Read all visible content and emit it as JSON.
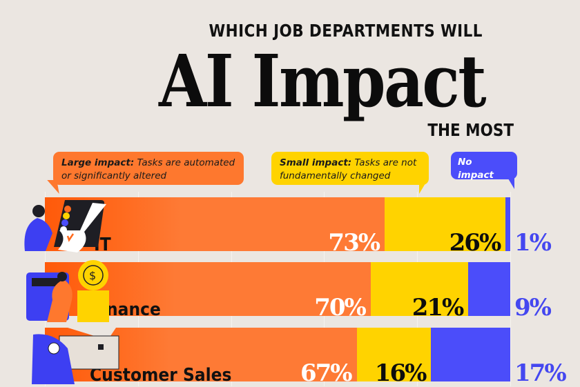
{
  "header": {
    "title_top": "WHICH JOB DEPARTMENTS WILL",
    "title_main": "AI Impact",
    "title_bottom": "THE MOST"
  },
  "legend": [
    {
      "key": "large",
      "label_bold": "Large impact:",
      "label_rest": " Tasks are automated or significantly altered",
      "color": "#fe782e"
    },
    {
      "key": "small",
      "label_bold": "Small impact:",
      "label_rest": " Tasks are not fundamentally changed",
      "color": "#ffd300"
    },
    {
      "key": "none",
      "label_bold": "No impact",
      "label_rest": "",
      "color": "#4b4dfa"
    }
  ],
  "chart_data": {
    "type": "bar",
    "orientation": "horizontal",
    "stacked": true,
    "title": "Which Job Departments Will AI Impact the Most",
    "categories": [
      "IT",
      "Finance",
      "Customer Sales"
    ],
    "series": [
      {
        "name": "Large impact: Tasks are automated or significantly altered",
        "color": "#fe782e",
        "values": [
          73,
          70,
          67
        ]
      },
      {
        "name": "Small impact: Tasks are not fundamentally changed",
        "color": "#ffd300",
        "values": [
          26,
          21,
          16
        ]
      },
      {
        "name": "No impact",
        "color": "#4b4dfa",
        "values": [
          1,
          9,
          17
        ]
      }
    ],
    "data_labels": [
      [
        "73%",
        "26%",
        "1%"
      ],
      [
        "70%",
        "21%",
        "9%"
      ],
      [
        "67%",
        "16%",
        "17%"
      ]
    ],
    "xlim": [
      0,
      100
    ],
    "unit": "%",
    "grid": "vertical-faint",
    "legend_position": "top"
  }
}
